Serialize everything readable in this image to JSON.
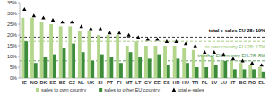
{
  "chart_data": {
    "type": "bar",
    "categories": [
      "IE",
      "NO",
      "DK",
      "SE",
      "BE",
      "CZ",
      "NL",
      "UK",
      "SI",
      "PT",
      "FI",
      "MT",
      "LT",
      "CY",
      "EE",
      "ES",
      "HR",
      "HU",
      "TR",
      "PL",
      "LV",
      "LU",
      "IT",
      "BG",
      "RO",
      "EL"
    ],
    "series": [
      {
        "name": "sales to own country",
        "type": "bar",
        "color": "#b4d68c",
        "values": [
          28,
          28,
          26,
          25,
          24,
          24,
          22,
          22,
          20,
          20,
          20,
          15,
          17,
          15,
          15,
          15,
          15,
          14,
          13,
          11,
          10,
          8,
          8,
          7,
          6,
          5
        ]
      },
      {
        "name": "sales to other EU country",
        "type": "bar",
        "color": "#3c8c3c",
        "values": [
          17,
          7,
          10,
          11,
          14,
          16,
          12,
          8,
          11,
          10,
          7,
          12,
          10,
          9,
          11,
          6,
          9,
          7,
          5,
          5,
          6,
          8,
          4,
          4,
          4,
          3
        ]
      },
      {
        "name": "total e-sales",
        "type": "scatter",
        "marker": "triangle",
        "line_style": "none",
        "color": "#000000",
        "values": [
          32,
          29,
          28,
          27,
          26,
          26,
          24,
          23,
          23,
          21,
          21,
          20,
          19,
          18,
          18,
          17,
          17,
          16,
          15,
          12,
          12,
          11,
          9,
          8,
          7,
          6
        ]
      }
    ],
    "reference_lines": [
      {
        "value": 19,
        "label": "total e-sales EU-28: 19%",
        "color": "#000000"
      },
      {
        "value": 17,
        "label": "to own country EU-28: 17%",
        "color": "#8fbf5f"
      },
      {
        "value": 8,
        "label": "to other EU country EU-28: 8%",
        "color": "#3c8c3c"
      }
    ],
    "ylim": [
      0,
      35
    ],
    "yticks": [
      {
        "value": 0,
        "label": "0%"
      },
      {
        "value": 5,
        "label": "5%"
      },
      {
        "value": 10,
        "label": "10%"
      },
      {
        "value": 15,
        "label": "15%"
      },
      {
        "value": 20,
        "label": "20%"
      },
      {
        "value": 25,
        "label": "25%"
      },
      {
        "value": 30,
        "label": "30%"
      },
      {
        "value": 35,
        "label": "35%"
      }
    ],
    "grid": false,
    "legend": "bottom"
  }
}
